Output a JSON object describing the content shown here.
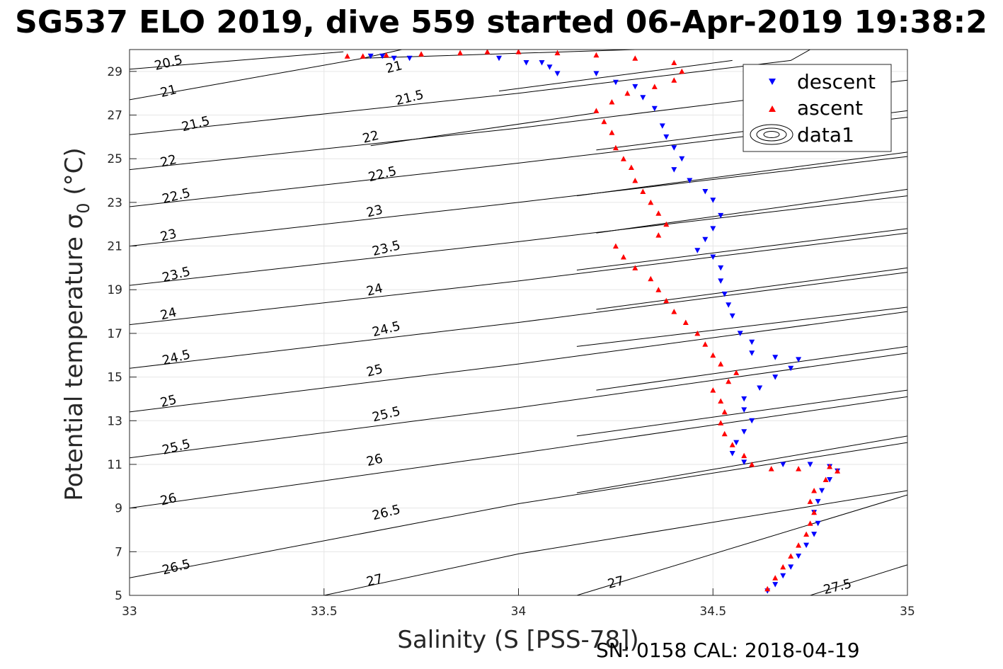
{
  "chart_data": {
    "type": "scatter",
    "title": "SG537 ELO 2019, dive 559 started 06-Apr-2019 19:38:2",
    "xlabel": "Salinity (S [PSS-78])",
    "ylabel": "Potential temperature σ",
    "ylabel_sub": "0",
    "ylabel_unit": " (°C)",
    "footer": "SN: 0158  CAL: 2018-04-19",
    "xlim": [
      33,
      35
    ],
    "ylim": [
      5,
      30
    ],
    "xticks": [
      "33",
      "33.5",
      "34",
      "34.5",
      "35"
    ],
    "xtick_values": [
      33,
      33.5,
      34,
      34.5,
      35
    ],
    "yticks": [
      "5",
      "7",
      "9",
      "11",
      "13",
      "15",
      "17",
      "19",
      "21",
      "23",
      "25",
      "27",
      "29"
    ],
    "ytick_values": [
      5,
      7,
      9,
      11,
      13,
      15,
      17,
      19,
      21,
      23,
      25,
      27,
      29
    ],
    "grid": true,
    "legend_position": "top-right",
    "legend": [
      {
        "label": "descent",
        "marker": "triangle-down",
        "color": "#0000ff"
      },
      {
        "label": "ascent",
        "marker": "triangle-up",
        "color": "#ff0000"
      },
      {
        "label": "data1",
        "marker": "contour",
        "color": "#000000"
      }
    ],
    "contours": [
      {
        "label": "20.5",
        "points": [
          [
            33.0,
            29.1
          ],
          [
            33.55,
            29.9
          ]
        ],
        "label_at": [
          33.1,
          29.4
        ]
      },
      {
        "label": "21",
        "points": [
          [
            33.0,
            27.7
          ],
          [
            33.6,
            29.6
          ],
          [
            34.3,
            30
          ]
        ],
        "label_at": [
          33.1,
          28.1
        ]
      },
      {
        "label": "21",
        "points": [
          [
            33.6,
            29.6
          ],
          [
            33.7,
            30
          ]
        ],
        "label_at": [
          33.68,
          29.2
        ]
      },
      {
        "label": "21.5",
        "points": [
          [
            33.0,
            26.1
          ],
          [
            34.0,
            28.0
          ],
          [
            34.7,
            29.5
          ],
          [
            34.75,
            30
          ]
        ],
        "label_at": [
          33.17,
          26.6
        ]
      },
      {
        "label": "21.5",
        "points": [
          [
            33.95,
            28.1
          ],
          [
            34.55,
            29.5
          ]
        ],
        "label_at": [
          33.72,
          27.8
        ]
      },
      {
        "label": "22",
        "points": [
          [
            33.0,
            24.5
          ],
          [
            34.0,
            26.4
          ],
          [
            35.0,
            28.6
          ]
        ],
        "label_at": [
          33.1,
          24.9
        ]
      },
      {
        "label": "22",
        "points": [
          [
            33.62,
            25.6
          ],
          [
            34.2,
            27.1
          ]
        ],
        "label_at": [
          33.62,
          26.0
        ]
      },
      {
        "label": "22.5",
        "points": [
          [
            33.0,
            22.8
          ],
          [
            34.0,
            24.8
          ],
          [
            35.0,
            26.9
          ]
        ],
        "label_at": [
          33.12,
          23.3
        ]
      },
      {
        "label": "22.5",
        "points": [
          [
            34.2,
            25.4
          ],
          [
            35.0,
            27.2
          ]
        ],
        "label_at": [
          33.65,
          24.3
        ]
      },
      {
        "label": "23",
        "points": [
          [
            33.0,
            21.0
          ],
          [
            34.0,
            23.0
          ],
          [
            35.0,
            25.1
          ]
        ],
        "label_at": [
          33.1,
          21.5
        ]
      },
      {
        "label": "23",
        "points": [
          [
            34.15,
            23.3
          ],
          [
            35.0,
            25.3
          ]
        ],
        "label_at": [
          33.63,
          22.6
        ]
      },
      {
        "label": "23.5",
        "points": [
          [
            33.0,
            19.2
          ],
          [
            34.0,
            21.2
          ],
          [
            35.0,
            23.3
          ]
        ],
        "label_at": [
          33.12,
          19.7
        ]
      },
      {
        "label": "23.5",
        "points": [
          [
            34.2,
            21.6
          ],
          [
            35.0,
            23.6
          ]
        ],
        "label_at": [
          33.66,
          20.9
        ]
      },
      {
        "label": "24",
        "points": [
          [
            33.0,
            17.4
          ],
          [
            34.0,
            19.4
          ],
          [
            35.0,
            21.6
          ]
        ],
        "label_at": [
          33.1,
          17.9
        ]
      },
      {
        "label": "24",
        "points": [
          [
            34.15,
            19.9
          ],
          [
            35.0,
            21.8
          ]
        ],
        "label_at": [
          33.63,
          19.0
        ]
      },
      {
        "label": "24.5",
        "points": [
          [
            33.0,
            15.4
          ],
          [
            34.0,
            17.5
          ],
          [
            35.0,
            19.8
          ]
        ],
        "label_at": [
          33.12,
          15.9
        ]
      },
      {
        "label": "24.5",
        "points": [
          [
            34.2,
            18.1
          ],
          [
            35.0,
            20.0
          ]
        ],
        "label_at": [
          33.66,
          17.2
        ]
      },
      {
        "label": "25",
        "points": [
          [
            33.0,
            13.4
          ],
          [
            34.0,
            15.6
          ],
          [
            35.0,
            18.0
          ]
        ],
        "label_at": [
          33.1,
          13.9
        ]
      },
      {
        "label": "25",
        "points": [
          [
            34.15,
            16.4
          ],
          [
            35.0,
            18.2
          ]
        ],
        "label_at": [
          33.63,
          15.3
        ]
      },
      {
        "label": "25.5",
        "points": [
          [
            33.0,
            11.3
          ],
          [
            34.0,
            13.6
          ],
          [
            35.0,
            16.1
          ]
        ],
        "label_at": [
          33.12,
          11.8
        ]
      },
      {
        "label": "25.5",
        "points": [
          [
            34.2,
            14.4
          ],
          [
            35.0,
            16.4
          ]
        ],
        "label_at": [
          33.66,
          13.3
        ]
      },
      {
        "label": "26",
        "points": [
          [
            33.0,
            9.0
          ],
          [
            34.0,
            11.5
          ],
          [
            35.0,
            14.1
          ]
        ],
        "label_at": [
          33.1,
          9.4
        ]
      },
      {
        "label": "26",
        "points": [
          [
            34.15,
            12.3
          ],
          [
            35.0,
            14.4
          ]
        ],
        "label_at": [
          33.63,
          11.2
        ]
      },
      {
        "label": "26.5",
        "points": [
          [
            33.0,
            5.8
          ],
          [
            34.0,
            9.2
          ],
          [
            35.0,
            12.0
          ]
        ],
        "label_at": [
          33.12,
          6.3
        ]
      },
      {
        "label": "26.5",
        "points": [
          [
            34.15,
            9.7
          ],
          [
            35.0,
            12.3
          ]
        ],
        "label_at": [
          33.66,
          8.8
        ]
      },
      {
        "label": "27",
        "points": [
          [
            33.5,
            5.0
          ],
          [
            34.0,
            6.9
          ],
          [
            35.0,
            9.8
          ]
        ],
        "label_at": [
          33.63,
          5.7
        ]
      },
      {
        "label": "27",
        "points": [
          [
            34.15,
            5.0
          ],
          [
            35.0,
            9.6
          ]
        ],
        "label_at": [
          34.25,
          5.6
        ]
      },
      {
        "label": "27.5",
        "points": [
          [
            34.75,
            5.0
          ],
          [
            35.0,
            6.4
          ]
        ],
        "label_at": [
          34.82,
          5.4
        ]
      }
    ],
    "series": [
      {
        "name": "descent",
        "color": "#0000ff",
        "marker": "triangle-down",
        "points": [
          [
            33.62,
            29.7
          ],
          [
            33.65,
            29.7
          ],
          [
            33.68,
            29.6
          ],
          [
            33.72,
            29.6
          ],
          [
            33.95,
            29.6
          ],
          [
            34.02,
            29.4
          ],
          [
            34.06,
            29.4
          ],
          [
            34.08,
            29.2
          ],
          [
            34.1,
            28.9
          ],
          [
            34.2,
            28.9
          ],
          [
            34.25,
            28.5
          ],
          [
            34.3,
            28.3
          ],
          [
            34.32,
            27.8
          ],
          [
            34.35,
            27.3
          ],
          [
            34.37,
            26.5
          ],
          [
            34.38,
            26.0
          ],
          [
            34.4,
            25.5
          ],
          [
            34.42,
            25.0
          ],
          [
            34.4,
            24.5
          ],
          [
            34.44,
            24.0
          ],
          [
            34.48,
            23.5
          ],
          [
            34.5,
            23.1
          ],
          [
            34.52,
            22.4
          ],
          [
            34.5,
            21.8
          ],
          [
            34.48,
            21.3
          ],
          [
            34.46,
            20.8
          ],
          [
            34.5,
            20.5
          ],
          [
            34.52,
            20.0
          ],
          [
            34.52,
            19.4
          ],
          [
            34.53,
            18.8
          ],
          [
            34.54,
            18.3
          ],
          [
            34.55,
            17.8
          ],
          [
            34.57,
            17.0
          ],
          [
            34.6,
            16.6
          ],
          [
            34.6,
            16.1
          ],
          [
            34.66,
            15.9
          ],
          [
            34.72,
            15.8
          ],
          [
            34.7,
            15.4
          ],
          [
            34.66,
            15.0
          ],
          [
            34.62,
            14.5
          ],
          [
            34.58,
            14.0
          ],
          [
            34.58,
            13.5
          ],
          [
            34.6,
            13.0
          ],
          [
            34.58,
            12.5
          ],
          [
            34.56,
            12.0
          ],
          [
            34.55,
            11.5
          ],
          [
            34.58,
            11.1
          ],
          [
            34.68,
            11.0
          ],
          [
            34.75,
            11.0
          ],
          [
            34.8,
            10.9
          ],
          [
            34.82,
            10.7
          ],
          [
            34.8,
            10.3
          ],
          [
            34.78,
            9.8
          ],
          [
            34.77,
            9.3
          ],
          [
            34.76,
            8.8
          ],
          [
            34.77,
            8.3
          ],
          [
            34.76,
            7.8
          ],
          [
            34.74,
            7.3
          ],
          [
            34.72,
            6.8
          ],
          [
            34.7,
            6.3
          ],
          [
            34.68,
            5.9
          ],
          [
            34.66,
            5.5
          ],
          [
            34.64,
            5.2
          ]
        ]
      },
      {
        "name": "ascent",
        "color": "#ff0000",
        "marker": "triangle-up",
        "points": [
          [
            33.56,
            29.7
          ],
          [
            33.6,
            29.7
          ],
          [
            33.66,
            29.75
          ],
          [
            33.75,
            29.8
          ],
          [
            33.85,
            29.85
          ],
          [
            33.92,
            29.9
          ],
          [
            34.0,
            29.9
          ],
          [
            34.1,
            29.85
          ],
          [
            34.2,
            29.75
          ],
          [
            34.3,
            29.6
          ],
          [
            34.4,
            29.4
          ],
          [
            34.42,
            29.0
          ],
          [
            34.4,
            28.6
          ],
          [
            34.35,
            28.3
          ],
          [
            34.28,
            28.0
          ],
          [
            34.24,
            27.6
          ],
          [
            34.2,
            27.2
          ],
          [
            34.22,
            26.7
          ],
          [
            34.24,
            26.2
          ],
          [
            34.25,
            25.5
          ],
          [
            34.27,
            25.0
          ],
          [
            34.29,
            24.6
          ],
          [
            34.3,
            24.0
          ],
          [
            34.32,
            23.5
          ],
          [
            34.34,
            23.0
          ],
          [
            34.36,
            22.5
          ],
          [
            34.38,
            22.0
          ],
          [
            34.36,
            21.5
          ],
          [
            34.25,
            21.0
          ],
          [
            34.27,
            20.5
          ],
          [
            34.3,
            20.0
          ],
          [
            34.34,
            19.5
          ],
          [
            34.36,
            19.0
          ],
          [
            34.38,
            18.5
          ],
          [
            34.4,
            18.0
          ],
          [
            34.43,
            17.5
          ],
          [
            34.46,
            17.0
          ],
          [
            34.48,
            16.5
          ],
          [
            34.5,
            16.0
          ],
          [
            34.52,
            15.6
          ],
          [
            34.56,
            15.2
          ],
          [
            34.54,
            14.8
          ],
          [
            34.5,
            14.4
          ],
          [
            34.52,
            13.9
          ],
          [
            34.53,
            13.4
          ],
          [
            34.52,
            12.9
          ],
          [
            34.53,
            12.4
          ],
          [
            34.55,
            11.9
          ],
          [
            34.58,
            11.4
          ],
          [
            34.6,
            11.0
          ],
          [
            34.65,
            10.8
          ],
          [
            34.72,
            10.8
          ],
          [
            34.8,
            10.9
          ],
          [
            34.82,
            10.7
          ],
          [
            34.79,
            10.3
          ],
          [
            34.76,
            9.8
          ],
          [
            34.75,
            9.3
          ],
          [
            34.76,
            8.8
          ],
          [
            34.75,
            8.3
          ],
          [
            34.74,
            7.8
          ],
          [
            34.72,
            7.3
          ],
          [
            34.7,
            6.8
          ],
          [
            34.68,
            6.3
          ],
          [
            34.66,
            5.8
          ],
          [
            34.64,
            5.3
          ]
        ]
      }
    ]
  }
}
